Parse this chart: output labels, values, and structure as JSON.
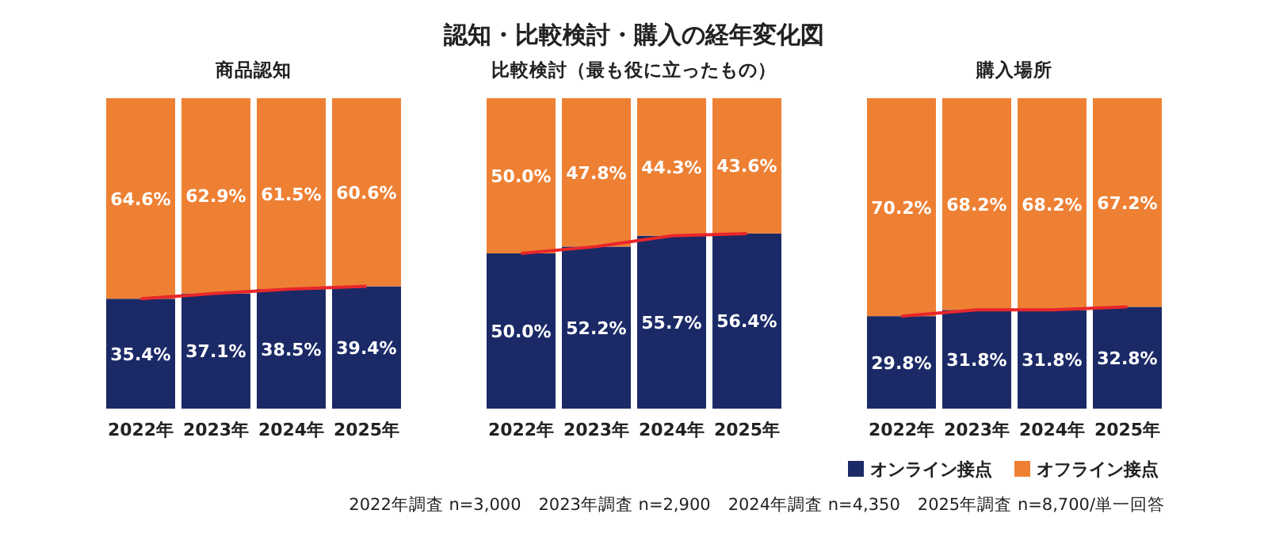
{
  "chart_data": [
    {
      "type": "other",
      "title": "認知・比較検討・購入の経年変化図",
      "annotations": [
        "2022年調査 n=3,000　2023年調査 n=2,900　2024年調査 n=4,350　2025年調査 n=8,700/単一回答"
      ]
    },
    {
      "type": "bar",
      "title": "商品認知",
      "categories": [
        "2022年",
        "2023年",
        "2024年",
        "2025年"
      ],
      "stacked": true,
      "series": [
        {
          "color": "#1b2a67",
          "values": [
            35.4,
            37.1,
            38.5,
            39.4
          ],
          "value_labels": [
            "35.4%",
            "37.1%",
            "38.5%",
            "39.4%"
          ]
        },
        {
          "color": "#ee8034",
          "values": [
            64.6,
            62.9,
            61.5,
            60.6
          ],
          "value_labels": [
            "64.6%",
            "62.9%",
            "61.5%",
            "60.6%"
          ]
        },
        {
          "type": "line",
          "color": "#e8262a",
          "values": [
            35.4,
            37.1,
            38.5,
            39.4
          ]
        }
      ]
    },
    {
      "type": "bar",
      "title": "比較検討（最も役に立ったもの）",
      "categories": [
        "2022年",
        "2023年",
        "2024年",
        "2025年"
      ],
      "stacked": true,
      "series": [
        {
          "color": "#1b2a67",
          "values": [
            50.0,
            52.2,
            55.7,
            56.4
          ],
          "value_labels": [
            "50.0%",
            "52.2%",
            "55.7%",
            "56.4%"
          ]
        },
        {
          "color": "#ee8034",
          "values": [
            50.0,
            47.8,
            44.3,
            43.6
          ],
          "value_labels": [
            "50.0%",
            "47.8%",
            "44.3%",
            "43.6%"
          ]
        },
        {
          "type": "line",
          "color": "#e8262a",
          "values": [
            50.0,
            52.2,
            55.7,
            56.4
          ]
        }
      ]
    },
    {
      "type": "bar",
      "title": "購入場所",
      "categories": [
        "2022年",
        "2023年",
        "2024年",
        "2025年"
      ],
      "stacked": true,
      "legend": "bottom",
      "series": [
        {
          "name": "オンライン接点",
          "color": "#1b2a67",
          "values": [
            29.8,
            31.8,
            31.8,
            32.8
          ],
          "value_labels": [
            "29.8%",
            "31.8%",
            "31.8%",
            "32.8%"
          ]
        },
        {
          "name": "オフライン接点",
          "color": "#ee8034",
          "values": [
            70.2,
            68.2,
            68.2,
            67.2
          ],
          "value_labels": [
            "70.2%",
            "68.2%",
            "68.2%",
            "67.2%"
          ]
        },
        {
          "type": "line",
          "color": "#e8262a",
          "values": [
            29.8,
            31.8,
            31.8,
            32.8
          ]
        }
      ]
    }
  ]
}
